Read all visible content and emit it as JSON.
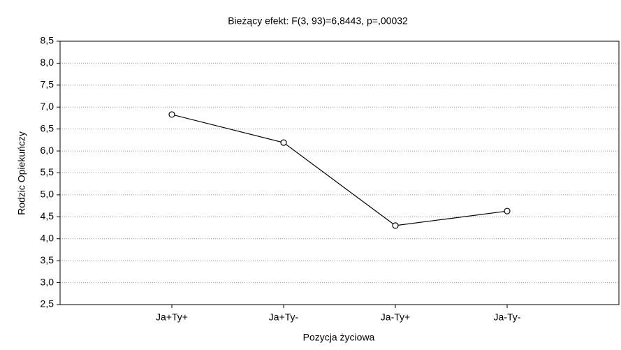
{
  "chart_data": {
    "type": "line",
    "title": "Bieżący efekt: F(3, 93)=6,8443, p=,00032",
    "x_label": "Pozycja życiowa",
    "y_label": "Rodzic Opiekuńczy",
    "categories": [
      "Ja+Ty+",
      "Ja+Ty-",
      "Ja-Ty+",
      "Ja-Ty-"
    ],
    "values": [
      6.83,
      6.19,
      4.3,
      4.63
    ],
    "color": "#000000",
    "ylim": [
      2.5,
      8.5
    ],
    "yticks": [
      {
        "value": 2.5,
        "label": "2,5"
      },
      {
        "value": 3,
        "label": "3,0"
      },
      {
        "value": 3.5,
        "label": "3,5"
      },
      {
        "value": 4,
        "label": "4,0"
      },
      {
        "value": 4.5,
        "label": "4,5"
      },
      {
        "value": 5,
        "label": "5,0"
      },
      {
        "value": 5.5,
        "label": "5,5"
      },
      {
        "value": 6,
        "label": "6,0"
      },
      {
        "value": 6.5,
        "label": "6,5"
      },
      {
        "value": 7,
        "label": "7,0"
      },
      {
        "value": 7.5,
        "label": "7,5"
      },
      {
        "value": 8,
        "label": "8,0"
      },
      {
        "value": 8.5,
        "label": "8,5"
      }
    ],
    "grid": true
  }
}
